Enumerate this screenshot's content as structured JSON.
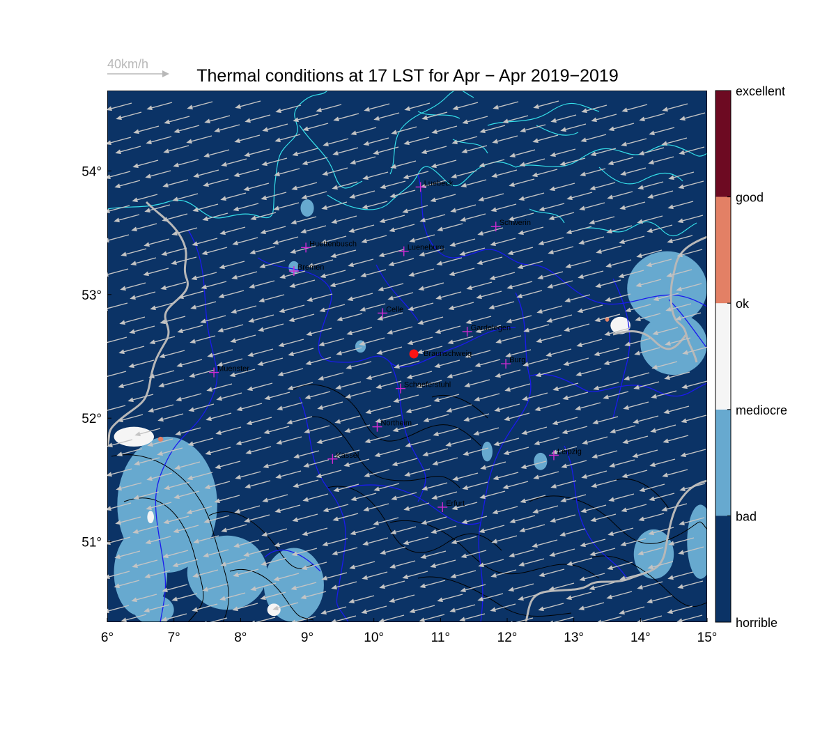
{
  "title": "Thermal conditions at 17 LST for Apr − Apr  2019−2019",
  "wind_scale": {
    "label": "40km/h"
  },
  "map": {
    "lon_range": [
      6,
      15
    ],
    "lat_range": [
      50.35,
      54.65
    ],
    "x_ticks": [
      {
        "value": 6,
        "label": "6°"
      },
      {
        "value": 7,
        "label": "7°"
      },
      {
        "value": 8,
        "label": "8°"
      },
      {
        "value": 9,
        "label": "9°"
      },
      {
        "value": 10,
        "label": "10°"
      },
      {
        "value": 11,
        "label": "11°"
      },
      {
        "value": 12,
        "label": "12°"
      },
      {
        "value": 13,
        "label": "13°"
      },
      {
        "value": 14,
        "label": "14°"
      },
      {
        "value": 15,
        "label": "15°"
      }
    ],
    "y_ticks": [
      {
        "value": 51,
        "label": "51°"
      },
      {
        "value": 52,
        "label": "52°"
      },
      {
        "value": 53,
        "label": "53°"
      },
      {
        "value": 54,
        "label": "54°"
      }
    ],
    "background_class": "bad",
    "colors": {
      "horrible": "#0b3366",
      "bad": "#0b3366",
      "mediocre": "#67a9cf",
      "ok": "#f5f5f5",
      "good": "#e38065",
      "excellent": "#6d0a22",
      "coast": "#35e0ea",
      "border": "#1a1aee",
      "frontier": "#b8b8b8",
      "contour": "#000000",
      "wind": "#c4c4c4",
      "marker": "#d22ad2",
      "home": "#ff1414"
    },
    "mediocre_regions": [
      {
        "lon": 6.9,
        "lat": 51.3,
        "rx": 0.75,
        "ry": 0.55
      },
      {
        "lon": 6.5,
        "lat": 50.75,
        "rx": 0.4,
        "ry": 0.35
      },
      {
        "lon": 7.8,
        "lat": 50.75,
        "rx": 0.6,
        "ry": 0.3
      },
      {
        "lon": 8.8,
        "lat": 50.65,
        "rx": 0.45,
        "ry": 0.3
      },
      {
        "lon": 14.4,
        "lat": 53.05,
        "rx": 0.6,
        "ry": 0.3
      },
      {
        "lon": 14.5,
        "lat": 52.6,
        "rx": 0.5,
        "ry": 0.25
      },
      {
        "lon": 14.9,
        "lat": 51.0,
        "rx": 0.2,
        "ry": 0.3
      },
      {
        "lon": 14.2,
        "lat": 50.9,
        "rx": 0.3,
        "ry": 0.2
      },
      {
        "lon": 6.7,
        "lat": 50.45,
        "rx": 0.3,
        "ry": 0.12
      },
      {
        "lon": 9.0,
        "lat": 53.7,
        "rx": 0.1,
        "ry": 0.07
      },
      {
        "lon": 8.8,
        "lat": 53.22,
        "rx": 0.08,
        "ry": 0.05
      },
      {
        "lon": 11.7,
        "lat": 51.73,
        "rx": 0.08,
        "ry": 0.08
      },
      {
        "lon": 12.5,
        "lat": 51.65,
        "rx": 0.1,
        "ry": 0.07
      },
      {
        "lon": 9.8,
        "lat": 52.58,
        "rx": 0.08,
        "ry": 0.05
      }
    ],
    "ok_regions": [
      {
        "lon": 6.4,
        "lat": 51.85,
        "rx": 0.3,
        "ry": 0.08
      },
      {
        "lon": 13.7,
        "lat": 52.75,
        "rx": 0.15,
        "ry": 0.07
      },
      {
        "lon": 6.65,
        "lat": 51.2,
        "rx": 0.05,
        "ry": 0.05
      },
      {
        "lon": 8.5,
        "lat": 50.45,
        "rx": 0.1,
        "ry": 0.05
      }
    ],
    "good_regions": [
      {
        "lon": 6.8,
        "lat": 51.83,
        "rx": 0.04,
        "ry": 0.02
      },
      {
        "lon": 13.5,
        "lat": 52.8,
        "rx": 0.03,
        "ry": 0.02
      }
    ],
    "cities": [
      {
        "name": "Luebeck",
        "lon": 10.7,
        "lat": 53.87
      },
      {
        "name": "Schwerin",
        "lon": 11.83,
        "lat": 53.55
      },
      {
        "name": "Huettenbusch",
        "lon": 8.98,
        "lat": 53.38
      },
      {
        "name": "Lueneburg",
        "lon": 10.45,
        "lat": 53.35
      },
      {
        "name": "Bremen",
        "lon": 8.8,
        "lat": 53.19
      },
      {
        "name": "Celle",
        "lon": 10.13,
        "lat": 52.85
      },
      {
        "name": "Gardelegen",
        "lon": 11.4,
        "lat": 52.7
      },
      {
        "name": "Braunschweig",
        "lon": 10.6,
        "lat": 52.52
      },
      {
        "name": "Burg",
        "lon": 11.98,
        "lat": 52.44
      },
      {
        "name": "Muenster",
        "lon": 7.6,
        "lat": 52.37
      },
      {
        "name": "Schaeferstuhl",
        "lon": 10.4,
        "lat": 52.24
      },
      {
        "name": "Northeim",
        "lon": 10.05,
        "lat": 51.93
      },
      {
        "name": "Kassel",
        "lon": 9.38,
        "lat": 51.67
      },
      {
        "name": "Leipzig",
        "lon": 12.7,
        "lat": 51.7
      },
      {
        "name": "Erfurt",
        "lon": 11.03,
        "lat": 51.28
      }
    ],
    "home_site": "Braunschweig",
    "wind": {
      "from_deg": 75,
      "speed_kmh": 15
    }
  },
  "colorbar": {
    "categories": [
      {
        "label": "horrible",
        "color": "#0b3366"
      },
      {
        "label": "bad",
        "color": "#0b3366"
      },
      {
        "label": "mediocre",
        "color": "#67a9cf"
      },
      {
        "label": "ok",
        "color": "#f5f5f5"
      },
      {
        "label": "good",
        "color": "#e38065"
      },
      {
        "label": "excellent",
        "color": "#6d0a22"
      }
    ]
  }
}
